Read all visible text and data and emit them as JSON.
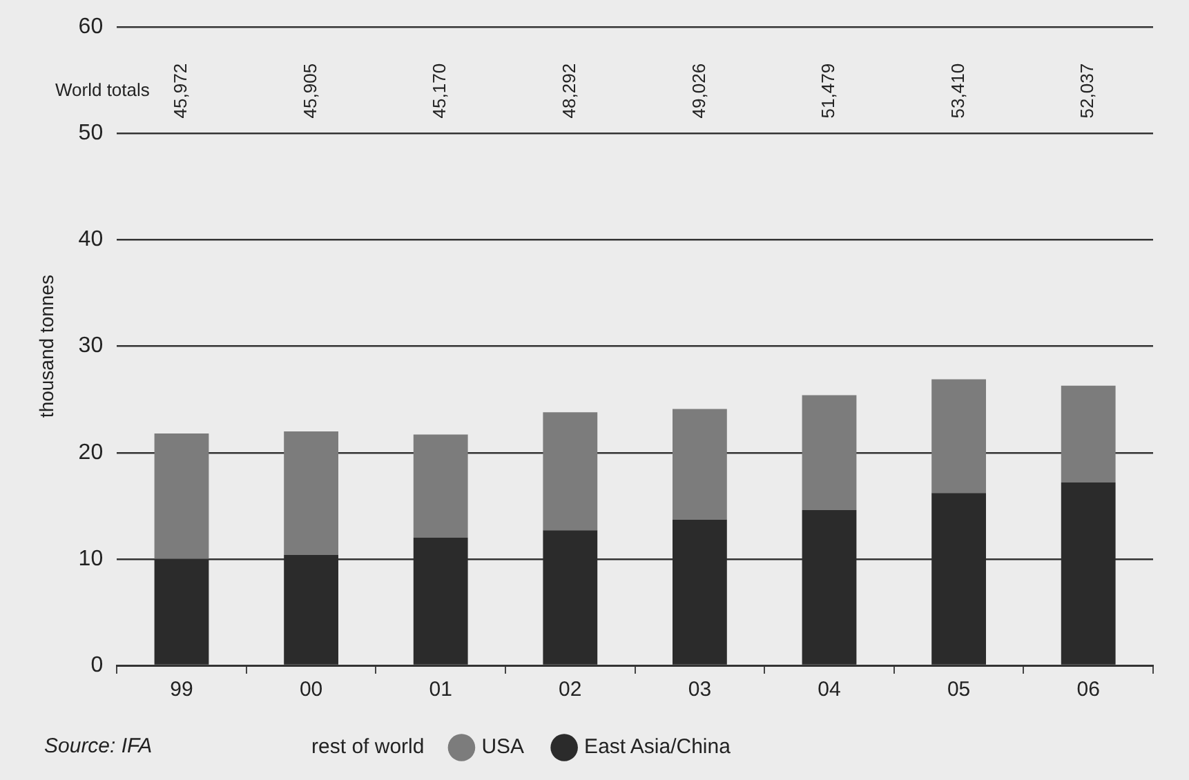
{
  "chart_data": {
    "type": "bar",
    "stacked": true,
    "ylabel": "thousand tonnes",
    "categories": [
      "99",
      "00",
      "01",
      "02",
      "03",
      "04",
      "05",
      "06"
    ],
    "series": [
      {
        "name": "East Asia/China",
        "color": "#2b2b2b",
        "values": [
          10.0,
          10.4,
          12.0,
          12.7,
          13.7,
          14.6,
          16.2,
          17.2
        ]
      },
      {
        "name": "USA",
        "color": "#7c7c7c",
        "values": [
          11.8,
          11.6,
          9.7,
          11.1,
          10.4,
          10.8,
          10.7,
          9.1
        ]
      }
    ],
    "ylim": [
      0,
      60
    ],
    "yticks": [
      0,
      10,
      20,
      30,
      40,
      50,
      60
    ],
    "grid": "y",
    "legend": "bottom",
    "annotations": [
      "World totals",
      "rest of world",
      "Source: IFA",
      "45,972",
      "45,905",
      "45,170",
      "48,292",
      "49,026",
      "51,479",
      "53,410",
      "52,037"
    ]
  }
}
